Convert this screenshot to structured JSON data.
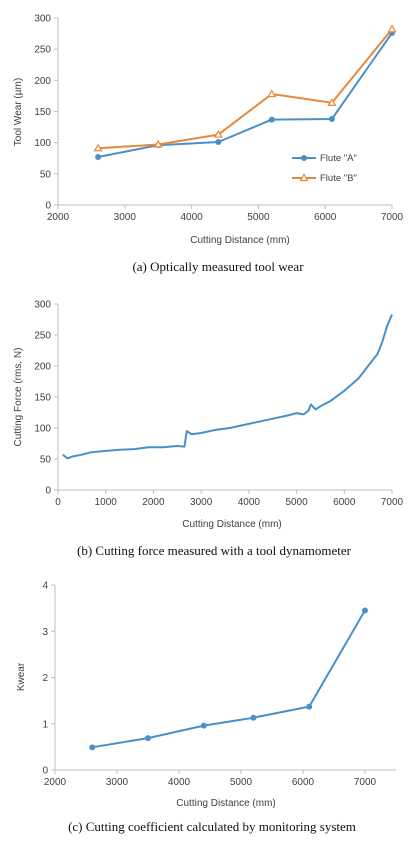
{
  "chart_data": [
    {
      "type": "line",
      "xlabel": "Cutting Distance (mm)",
      "ylabel": "Tool Wear (µm)",
      "xlim": [
        2000,
        7000
      ],
      "ylim": [
        0,
        300
      ],
      "xticks": [
        "2000",
        "3000",
        "4000",
        "5000",
        "6000",
        "7000"
      ],
      "yticks": [
        "0",
        "50",
        "100",
        "150",
        "200",
        "250",
        "300"
      ],
      "grid": false,
      "legend_position": "right",
      "series": [
        {
          "name": "Flute \"A\"",
          "color": "#4a90c8",
          "marker": "circle",
          "x": [
            2600,
            3500,
            4400,
            5200,
            6100,
            7000
          ],
          "y": [
            77,
            96,
            101,
            137,
            138,
            276
          ]
        },
        {
          "name": "Flute \"B\"",
          "color": "#e8883a",
          "marker": "triangle",
          "x": [
            2600,
            3500,
            4400,
            5200,
            6100,
            7000
          ],
          "y": [
            91,
            97,
            113,
            178,
            164,
            282
          ]
        }
      ],
      "caption": "(a) Optically measured tool wear"
    },
    {
      "type": "line",
      "xlabel": "Cutting Distance (mm)",
      "ylabel": "Cutting Force (rms, N)",
      "xlim": [
        0,
        7000
      ],
      "ylim": [
        0,
        300
      ],
      "xticks": [
        "0",
        "1000",
        "2000",
        "3000",
        "4000",
        "5000",
        "6000",
        "7000"
      ],
      "yticks": [
        "0",
        "50",
        "100",
        "150",
        "200",
        "250",
        "300"
      ],
      "grid": false,
      "series": [
        {
          "color": "#4a90c8",
          "x": [
            100,
            200,
            300,
            500,
            700,
            1000,
            1300,
            1600,
            1900,
            2200,
            2500,
            2650,
            2700,
            2800,
            3000,
            3300,
            3600,
            3900,
            4200,
            4500,
            4800,
            5000,
            5150,
            5250,
            5300,
            5400,
            5500,
            5700,
            6000,
            6300,
            6500,
            6700,
            6800,
            6900,
            7000
          ],
          "y": [
            57,
            51,
            54,
            57,
            61,
            63,
            65,
            66,
            69,
            69,
            71,
            70,
            95,
            90,
            92,
            97,
            100,
            105,
            110,
            115,
            120,
            124,
            122,
            128,
            138,
            130,
            135,
            143,
            160,
            180,
            200,
            220,
            240,
            265,
            283
          ]
        }
      ],
      "caption": "(b) Cutting force measured with a tool dynamometer"
    },
    {
      "type": "line",
      "xlabel": "Cutting Distance (mm)",
      "ylabel": "Kwear",
      "xlim": [
        2000,
        7500
      ],
      "ylim": [
        0,
        4
      ],
      "xticks": [
        "2000",
        "3000",
        "4000",
        "5000",
        "6000",
        "7000"
      ],
      "yticks": [
        "0",
        "1",
        "2",
        "3",
        "4"
      ],
      "grid": false,
      "series": [
        {
          "color": "#4a90c8",
          "marker": "circle",
          "x": [
            2600,
            3500,
            4400,
            5200,
            6100,
            7000
          ],
          "y": [
            0.49,
            0.69,
            0.96,
            1.13,
            1.37,
            3.45
          ]
        }
      ],
      "caption": "(c) Cutting coefficient calculated by monitoring system"
    }
  ]
}
